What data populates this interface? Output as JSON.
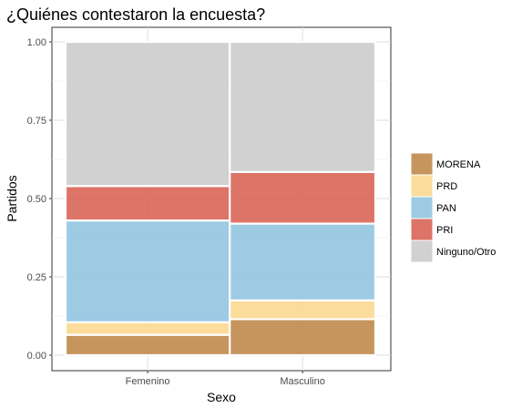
{
  "chart_data": {
    "type": "bar",
    "stacked": true,
    "proportional_width": true,
    "title": "¿Quiénes contestaron la encuesta?",
    "xlabel": "Sexo",
    "ylabel": "Partidos",
    "ylim": [
      0,
      1
    ],
    "yticks": [
      "0.00",
      "0.25",
      "0.50",
      "0.75",
      "1.00"
    ],
    "ytick_values": [
      0,
      0.25,
      0.5,
      0.75,
      1.0
    ],
    "categories": [
      "Femenino",
      "Masculino"
    ],
    "category_shares": [
      0.53,
      0.47
    ],
    "grid": true,
    "legend_position": "right",
    "series": [
      {
        "name": "MORENA",
        "color": "#c08a4b",
        "values": [
          0.065,
          0.115
        ]
      },
      {
        "name": "PRD",
        "color": "#fcd890",
        "values": [
          0.04,
          0.06
        ]
      },
      {
        "name": "PAN",
        "color": "#92c5e1",
        "values": [
          0.325,
          0.245
        ]
      },
      {
        "name": "PRI",
        "color": "#d96558",
        "values": [
          0.11,
          0.165
        ]
      },
      {
        "name": "Ninguno/Otro",
        "color": "#cccccc",
        "values": [
          0.46,
          0.415
        ]
      }
    ]
  }
}
